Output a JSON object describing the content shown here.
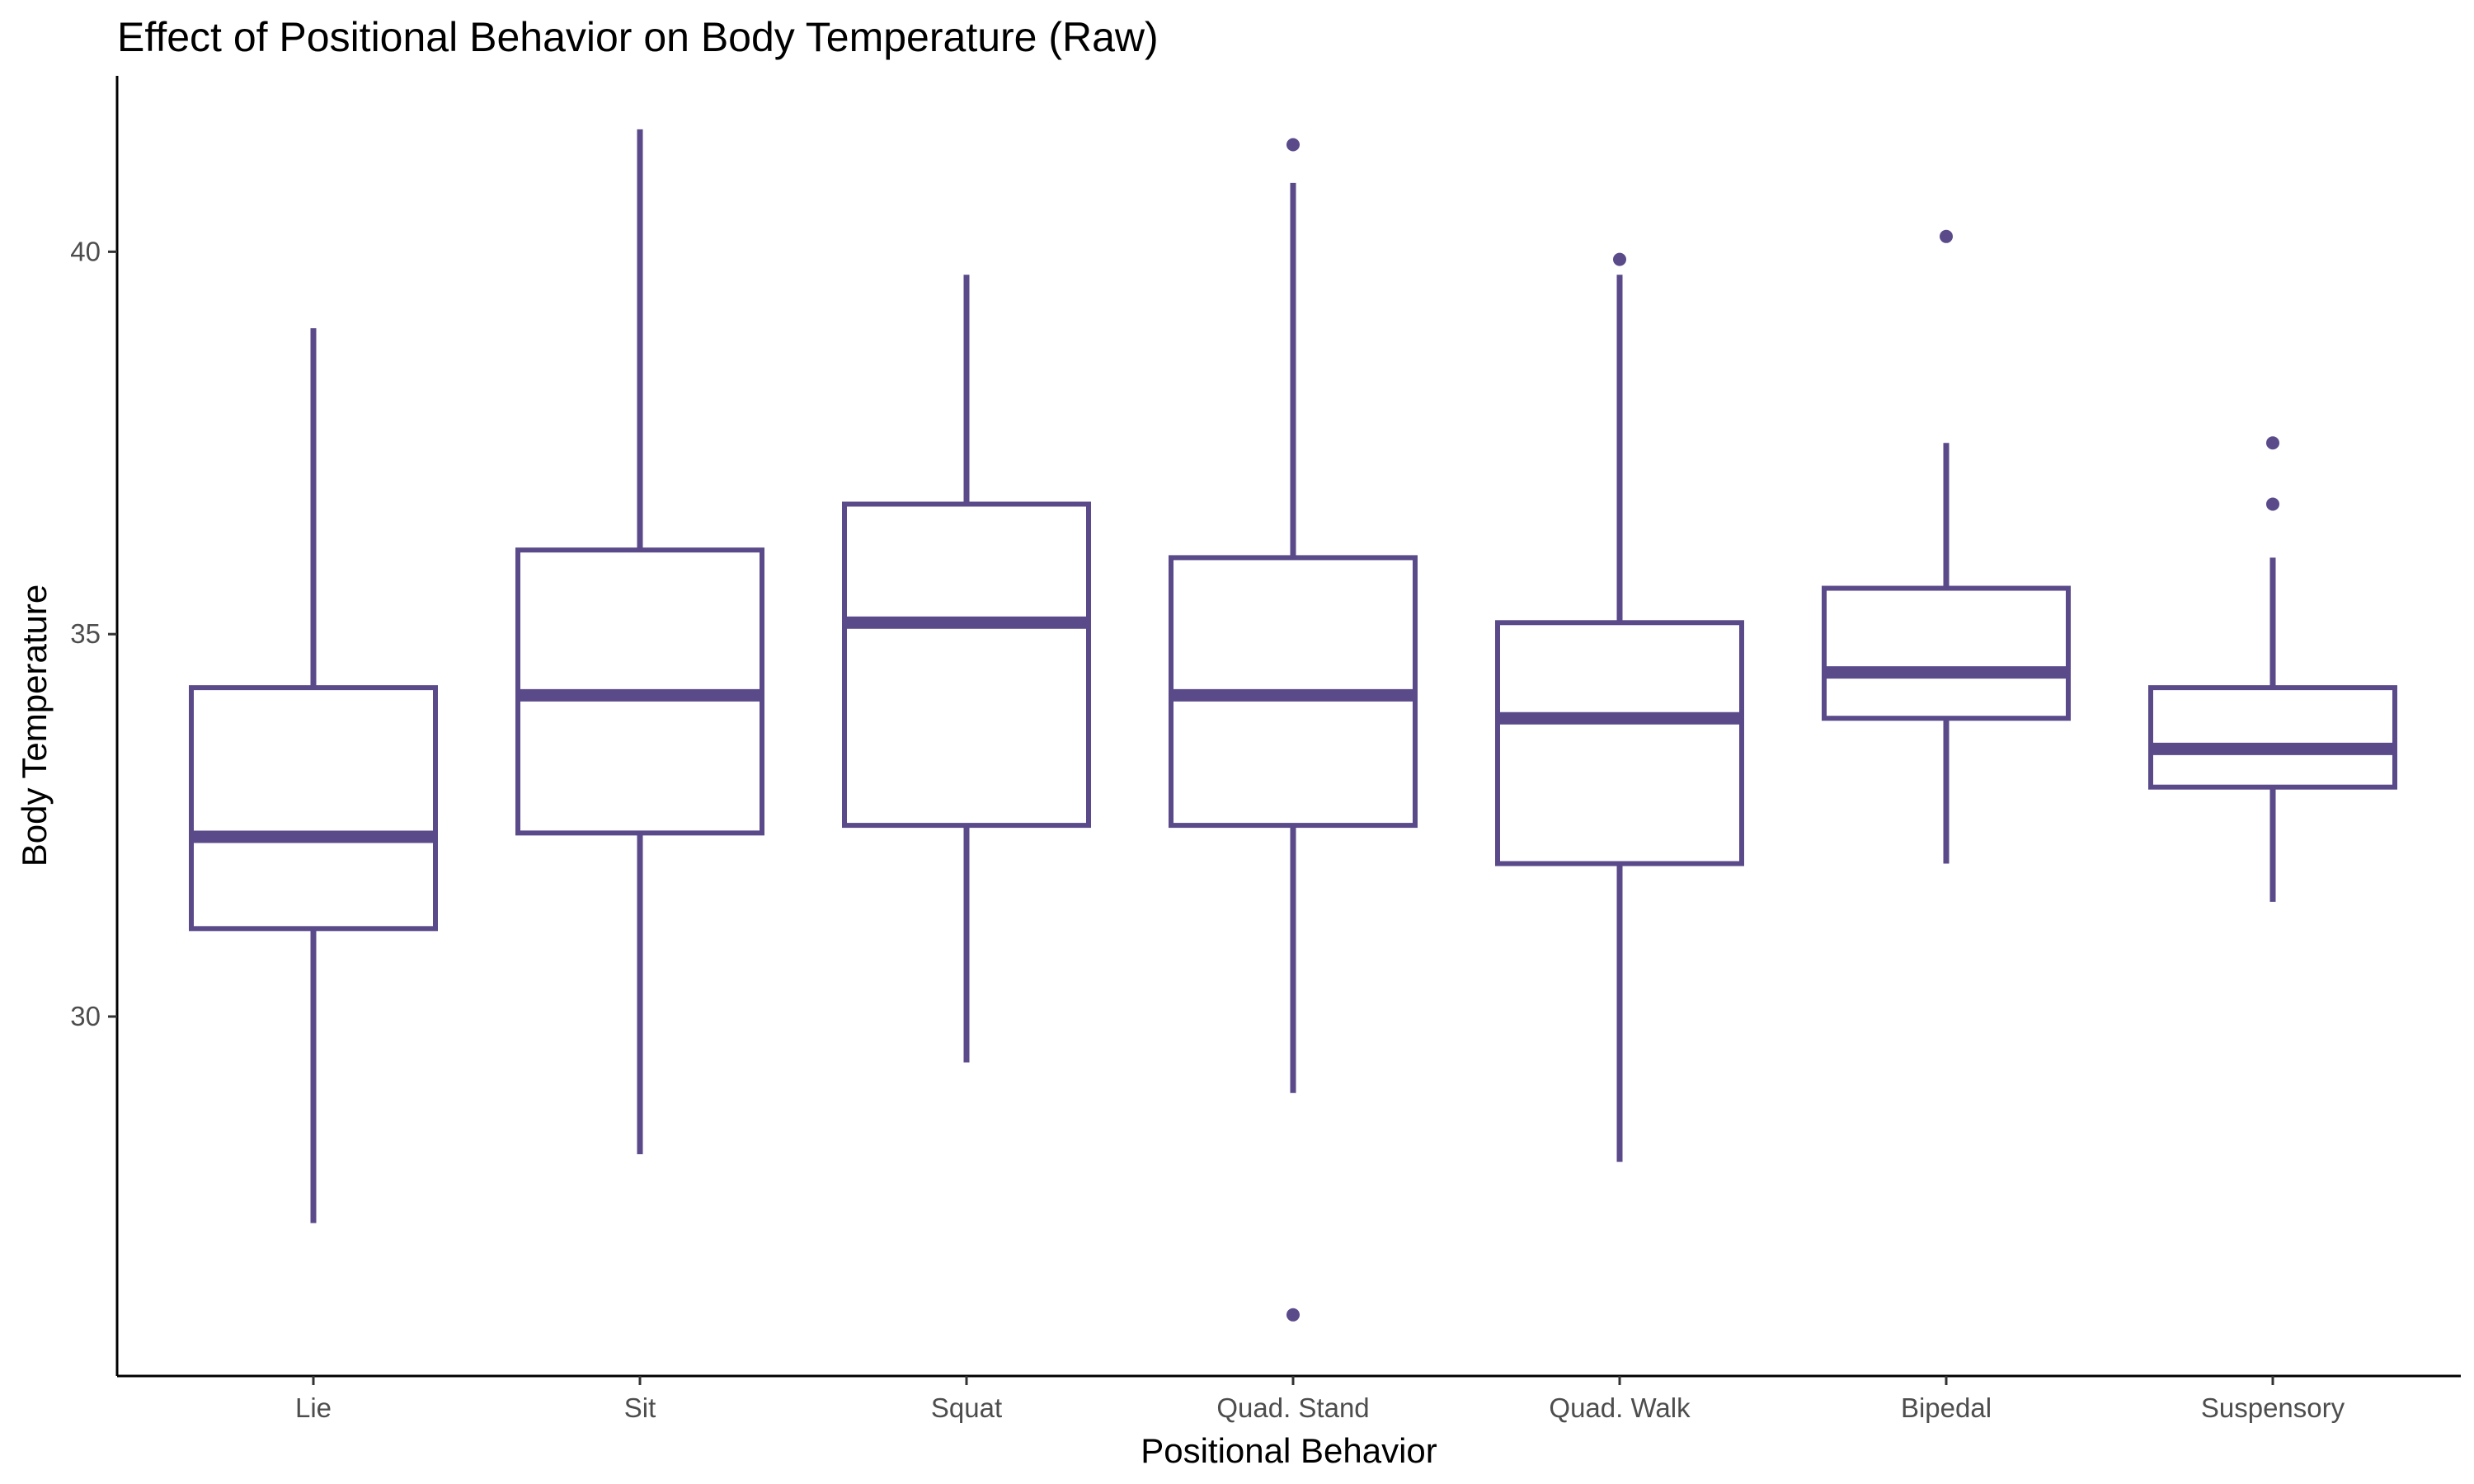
{
  "chart_data": {
    "type": "boxplot",
    "title": "Effect of Positional Behavior on Body Temperature (Raw)",
    "xlabel": "Positional Behavior",
    "ylabel": "Body Temperature",
    "ylim": [
      25.3,
      42.3
    ],
    "yticks": [
      30,
      35,
      40
    ],
    "ytick_labels": [
      "30",
      "35",
      "40"
    ],
    "grid": false,
    "color": "#5a4a8a",
    "categories": [
      "Lie",
      "Sit",
      "Squat",
      "Quad. Stand",
      "Quad. Walk",
      "Bipedal",
      "Suspensory"
    ],
    "boxes": [
      {
        "category": "Lie",
        "whisker_low": 27.3,
        "q1": 31.15,
        "median": 32.35,
        "q3": 34.3,
        "whisker_high": 39.0,
        "outliers": []
      },
      {
        "category": "Sit",
        "whisker_low": 28.2,
        "q1": 32.4,
        "median": 34.2,
        "q3": 36.1,
        "whisker_high": 41.6,
        "outliers": []
      },
      {
        "category": "Squat",
        "whisker_low": 29.4,
        "q1": 32.5,
        "median": 35.15,
        "q3": 36.7,
        "whisker_high": 39.7,
        "outliers": []
      },
      {
        "category": "Quad. Stand",
        "whisker_low": 29.0,
        "q1": 32.5,
        "median": 34.2,
        "q3": 36.0,
        "whisker_high": 40.9,
        "outliers": [
          41.4,
          26.1
        ]
      },
      {
        "category": "Quad. Walk",
        "whisker_low": 28.1,
        "q1": 32.0,
        "median": 33.9,
        "q3": 35.15,
        "whisker_high": 39.7,
        "outliers": [
          39.9
        ]
      },
      {
        "category": "Bipedal",
        "whisker_low": 32.0,
        "q1": 33.9,
        "median": 34.5,
        "q3": 35.6,
        "whisker_high": 37.5,
        "outliers": [
          40.2
        ]
      },
      {
        "category": "Suspensory",
        "whisker_low": 31.5,
        "q1": 33.0,
        "median": 33.5,
        "q3": 34.3,
        "whisker_high": 36.0,
        "outliers": [
          37.5,
          36.7
        ]
      }
    ]
  }
}
